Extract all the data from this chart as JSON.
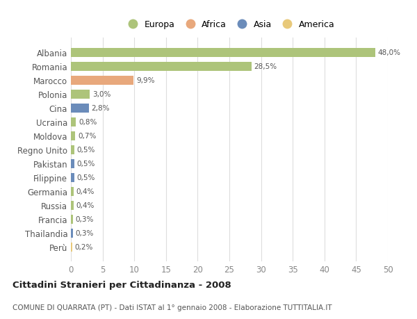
{
  "countries": [
    "Albania",
    "Romania",
    "Marocco",
    "Polonia",
    "Cina",
    "Ucraina",
    "Moldova",
    "Regno Unito",
    "Pakistan",
    "Filippine",
    "Germania",
    "Russia",
    "Francia",
    "Thailandia",
    "Perù"
  ],
  "values": [
    48.0,
    28.5,
    9.9,
    3.0,
    2.8,
    0.8,
    0.7,
    0.5,
    0.5,
    0.5,
    0.4,
    0.4,
    0.3,
    0.3,
    0.2
  ],
  "labels": [
    "48,0%",
    "28,5%",
    "9,9%",
    "3,0%",
    "2,8%",
    "0,8%",
    "0,7%",
    "0,5%",
    "0,5%",
    "0,5%",
    "0,4%",
    "0,4%",
    "0,3%",
    "0,3%",
    "0,2%"
  ],
  "continents": [
    "Europa",
    "Europa",
    "Africa",
    "Europa",
    "Asia",
    "Europa",
    "Europa",
    "Europa",
    "Asia",
    "Asia",
    "Europa",
    "Europa",
    "Europa",
    "Asia",
    "America"
  ],
  "colors": {
    "Europa": "#adc47a",
    "Africa": "#e8a87c",
    "Asia": "#6b8cba",
    "America": "#e8c97a"
  },
  "legend_order": [
    "Europa",
    "Africa",
    "Asia",
    "America"
  ],
  "title": "Cittadini Stranieri per Cittadinanza - 2008",
  "subtitle": "COMUNE DI QUARRATA (PT) - Dati ISTAT al 1° gennaio 2008 - Elaborazione TUTTITALIA.IT",
  "xlim": [
    0,
    50
  ],
  "xticks": [
    0,
    5,
    10,
    15,
    20,
    25,
    30,
    35,
    40,
    45,
    50
  ],
  "background_color": "#ffffff",
  "grid_color": "#dddddd"
}
